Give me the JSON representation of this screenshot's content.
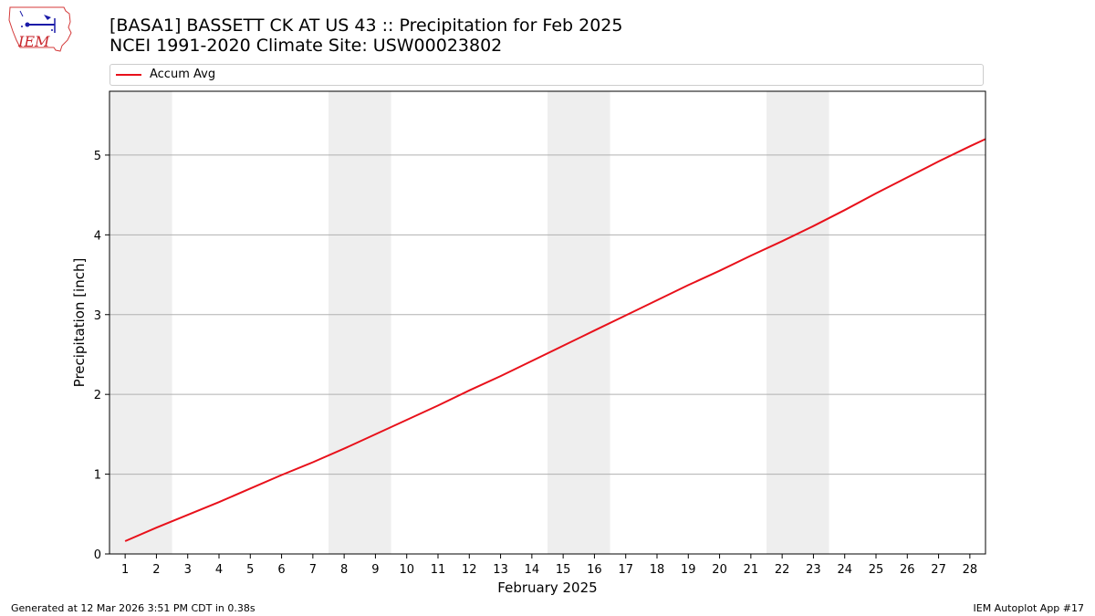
{
  "header": {
    "title_line1": "[BASA1] BASSETT CK AT US 43 :: Precipitation for Feb 2025",
    "title_line2": "NCEI 1991-2020 Climate Site: USW00023802",
    "logo_text": "IEM"
  },
  "legend": {
    "label": "Accum Avg",
    "color": "#e8111b"
  },
  "footer": {
    "left": "Generated at 12 Mar 2026 3:51 PM CDT in 0.38s",
    "right": "IEM Autoplot App #17"
  },
  "chart_data": {
    "type": "line",
    "title": "",
    "xlabel": "February 2025",
    "ylabel": "Precipitation [inch]",
    "x": [
      1,
      2,
      3,
      4,
      5,
      6,
      7,
      8,
      9,
      10,
      11,
      12,
      13,
      14,
      15,
      16,
      17,
      18,
      19,
      20,
      21,
      22,
      23,
      24,
      25,
      26,
      27,
      28,
      28.5
    ],
    "xlim": [
      0.5,
      28.5
    ],
    "ylim": [
      0,
      5.8
    ],
    "yticks": [
      0,
      1,
      2,
      3,
      4,
      5
    ],
    "xticks": [
      1,
      2,
      3,
      4,
      5,
      6,
      7,
      8,
      9,
      10,
      11,
      12,
      13,
      14,
      15,
      16,
      17,
      18,
      19,
      20,
      21,
      22,
      23,
      24,
      25,
      26,
      27,
      28
    ],
    "grid": "horizontal",
    "weekend_shading": [
      [
        0.5,
        2.5
      ],
      [
        7.5,
        9.5
      ],
      [
        14.5,
        16.5
      ],
      [
        21.5,
        23.5
      ]
    ],
    "weekend_color": "#eeeeee",
    "series": [
      {
        "name": "Accum Avg",
        "color": "#e8111b",
        "values": [
          0.16,
          0.33,
          0.49,
          0.65,
          0.82,
          0.99,
          1.15,
          1.32,
          1.5,
          1.68,
          1.86,
          2.05,
          2.23,
          2.42,
          2.61,
          2.8,
          2.99,
          3.18,
          3.37,
          3.55,
          3.74,
          3.92,
          4.11,
          4.31,
          4.52,
          4.72,
          4.92,
          5.11,
          5.2
        ]
      }
    ]
  }
}
